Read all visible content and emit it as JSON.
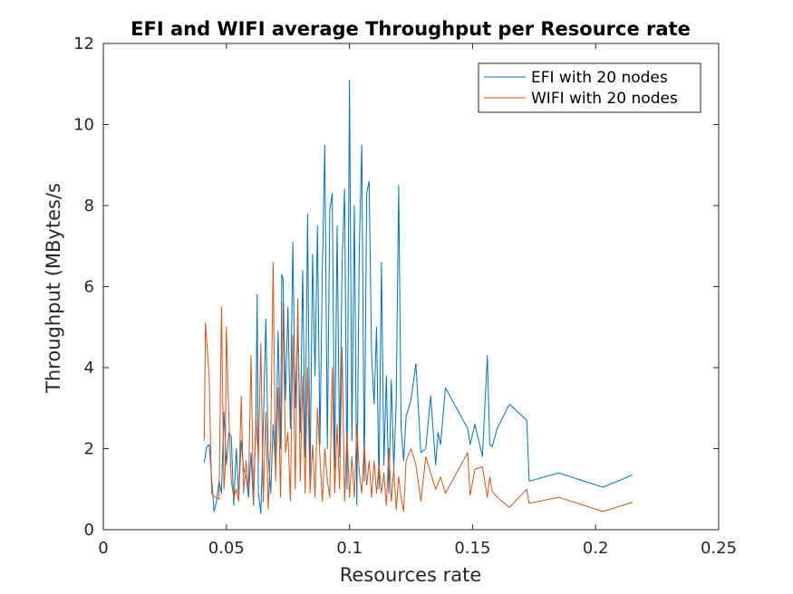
{
  "chart_data": {
    "type": "line",
    "title": "EFI and WIFI average Throughput per Resource rate",
    "xlabel": "Resources rate",
    "ylabel": "Throughput (MBytes/s",
    "xlim": [
      0,
      0.25
    ],
    "ylim": [
      0,
      12
    ],
    "xticks": [
      0,
      0.05,
      0.1,
      0.15,
      0.2,
      0.25
    ],
    "xtick_labels": [
      "0",
      "0.05",
      "0.1",
      "0.15",
      "0.2",
      "0.25"
    ],
    "yticks": [
      0,
      2,
      4,
      6,
      8,
      10,
      12
    ],
    "ytick_labels": [
      "0",
      "2",
      "4",
      "6",
      "8",
      "10",
      "12"
    ],
    "grid": false,
    "legend_position": "top-right",
    "series": [
      {
        "name": "EFI with 20 nodes",
        "color": "#0072BD",
        "x": [
          0.041,
          0.042,
          0.043,
          0.045,
          0.046,
          0.047,
          0.048,
          0.049,
          0.05,
          0.051,
          0.052,
          0.053,
          0.054,
          0.055,
          0.056,
          0.057,
          0.058,
          0.059,
          0.06,
          0.061,
          0.062,
          0.0625,
          0.063,
          0.064,
          0.065,
          0.066,
          0.067,
          0.068,
          0.069,
          0.07,
          0.071,
          0.072,
          0.0725,
          0.073,
          0.074,
          0.075,
          0.076,
          0.077,
          0.078,
          0.079,
          0.08,
          0.081,
          0.082,
          0.083,
          0.084,
          0.085,
          0.086,
          0.087,
          0.088,
          0.089,
          0.09,
          0.091,
          0.092,
          0.093,
          0.094,
          0.095,
          0.096,
          0.097,
          0.098,
          0.099,
          0.1,
          0.101,
          0.102,
          0.103,
          0.104,
          0.105,
          0.106,
          0.107,
          0.108,
          0.109,
          0.11,
          0.111,
          0.112,
          0.113,
          0.114,
          0.115,
          0.116,
          0.117,
          0.118,
          0.119,
          0.12,
          0.121,
          0.122,
          0.123,
          0.125,
          0.127,
          0.129,
          0.131,
          0.133,
          0.135,
          0.136,
          0.137,
          0.139,
          0.148,
          0.149,
          0.151,
          0.154,
          0.156,
          0.157,
          0.158,
          0.16,
          0.165,
          0.172,
          0.173,
          0.185,
          0.203,
          0.215
        ],
        "y": [
          1.65,
          2.05,
          2.1,
          0.45,
          0.7,
          1.2,
          0.9,
          2.9,
          1.6,
          2.4,
          2.3,
          0.6,
          2.0,
          0.8,
          2.2,
          1.5,
          1.3,
          0.8,
          1.9,
          0.6,
          2.8,
          5.8,
          0.9,
          0.4,
          2.5,
          5.2,
          1.8,
          0.9,
          2.6,
          1.5,
          4.9,
          2.0,
          6.3,
          6.2,
          3.2,
          5.5,
          2.5,
          7.1,
          3.0,
          5.0,
          2.4,
          6.4,
          1.8,
          7.8,
          1.2,
          6.8,
          3.8,
          7.5,
          2.1,
          6.4,
          9.5,
          2.0,
          7.9,
          8.3,
          1.5,
          7.5,
          1.8,
          6.6,
          8.4,
          1.0,
          11.1,
          2.2,
          8.0,
          0.6,
          7.0,
          9.5,
          1.2,
          8.3,
          8.6,
          4.3,
          3.1,
          5.0,
          1.0,
          6.6,
          1.6,
          3.8,
          0.9,
          3.7,
          1.5,
          3.2,
          8.5,
          2.5,
          1.7,
          2.8,
          3.2,
          4.1,
          1.9,
          2.0,
          3.3,
          1.6,
          2.4,
          2.1,
          3.5,
          2.5,
          2.1,
          2.6,
          1.8,
          4.3,
          2.1,
          2.05,
          2.5,
          3.1,
          2.7,
          1.2,
          1.4,
          1.05,
          1.35
        ]
      },
      {
        "name": "WIFI with 20 nodes",
        "color": "#D95319",
        "x": [
          0.041,
          0.0415,
          0.043,
          0.044,
          0.0455,
          0.047,
          0.048,
          0.049,
          0.0495,
          0.05,
          0.051,
          0.052,
          0.053,
          0.054,
          0.055,
          0.056,
          0.057,
          0.058,
          0.059,
          0.06,
          0.061,
          0.062,
          0.063,
          0.064,
          0.065,
          0.066,
          0.067,
          0.068,
          0.069,
          0.07,
          0.071,
          0.072,
          0.073,
          0.074,
          0.075,
          0.076,
          0.077,
          0.078,
          0.079,
          0.08,
          0.081,
          0.082,
          0.083,
          0.084,
          0.085,
          0.086,
          0.087,
          0.088,
          0.089,
          0.09,
          0.091,
          0.092,
          0.093,
          0.094,
          0.095,
          0.096,
          0.097,
          0.098,
          0.099,
          0.1,
          0.101,
          0.102,
          0.103,
          0.104,
          0.105,
          0.106,
          0.107,
          0.108,
          0.109,
          0.11,
          0.111,
          0.112,
          0.113,
          0.114,
          0.115,
          0.116,
          0.117,
          0.118,
          0.119,
          0.12,
          0.121,
          0.122,
          0.123,
          0.125,
          0.127,
          0.129,
          0.131,
          0.133,
          0.135,
          0.137,
          0.139,
          0.148,
          0.149,
          0.151,
          0.154,
          0.156,
          0.157,
          0.158,
          0.16,
          0.165,
          0.172,
          0.173,
          0.185,
          0.203,
          0.215
        ],
        "y": [
          2.2,
          5.1,
          3.8,
          0.9,
          0.8,
          0.75,
          5.5,
          1.0,
          1.5,
          5.0,
          2.8,
          1.2,
          0.8,
          1.0,
          0.7,
          3.3,
          0.9,
          1.7,
          1.0,
          4.3,
          0.6,
          2.8,
          1.7,
          4.6,
          0.7,
          2.9,
          0.5,
          2.2,
          6.6,
          1.2,
          3.5,
          0.8,
          5.6,
          1.9,
          2.4,
          0.7,
          4.8,
          1.0,
          5.7,
          1.2,
          3.8,
          0.9,
          4.0,
          0.9,
          2.1,
          0.8,
          3.0,
          1.8,
          0.7,
          2.0,
          1.2,
          0.8,
          4.0,
          0.9,
          2.6,
          1.0,
          4.5,
          0.7,
          2.4,
          0.8,
          1.8,
          0.8,
          2.6,
          1.4,
          0.9,
          2.1,
          1.1,
          1.7,
          0.8,
          1.7,
          0.9,
          1.6,
          0.9,
          1.4,
          0.6,
          2.0,
          0.7,
          1.5,
          0.5,
          1.3,
          0.8,
          0.45,
          1.7,
          2.0,
          1.6,
          0.7,
          1.8,
          1.4,
          1.0,
          1.3,
          0.9,
          1.9,
          0.85,
          1.5,
          1.55,
          0.8,
          1.3,
          0.95,
          0.8,
          0.55,
          1.0,
          0.65,
          0.8,
          0.45,
          0.68
        ]
      }
    ]
  }
}
